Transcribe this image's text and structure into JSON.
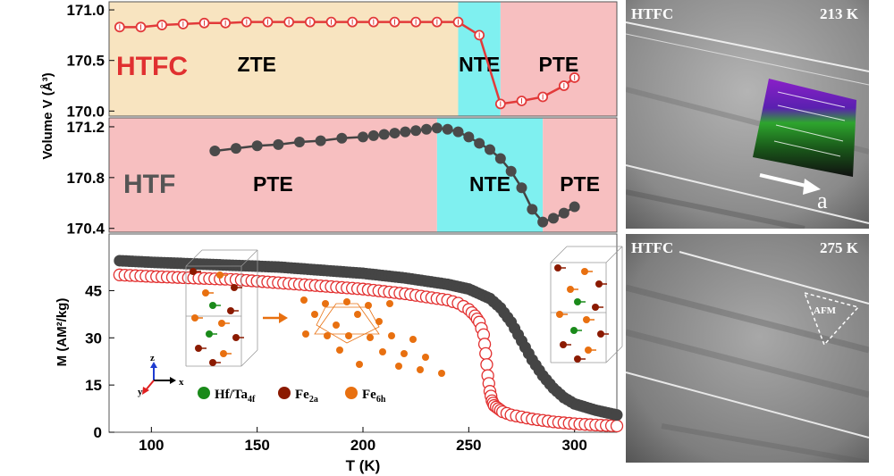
{
  "chart_data": [
    {
      "type": "line",
      "panel": "volume-HTFC",
      "ylabel": "Volume V (Å³)",
      "xlim": [
        80,
        320
      ],
      "ylim": [
        169.95,
        171.08
      ],
      "yticks": [
        "171.0",
        "170.5",
        "170.0"
      ],
      "sample_label": "HTFC",
      "regions": [
        {
          "label": "ZTE",
          "x0": 80,
          "x1": 245,
          "color": "#f8e4c0"
        },
        {
          "label": "NTE",
          "x0": 245,
          "x1": 265,
          "color": "#7ff0f0"
        },
        {
          "label": "PTE",
          "x0": 265,
          "x1": 320,
          "color": "#f7bfc0"
        }
      ],
      "series": [
        {
          "x": [
            85,
            95,
            105,
            115,
            125,
            135,
            145,
            155,
            165,
            175,
            185,
            195,
            205,
            215,
            225,
            235,
            245,
            255,
            265,
            275,
            285,
            295,
            300
          ],
          "y": [
            170.83,
            170.83,
            170.85,
            170.86,
            170.87,
            170.87,
            170.88,
            170.88,
            170.88,
            170.88,
            170.88,
            170.88,
            170.88,
            170.88,
            170.88,
            170.88,
            170.88,
            170.75,
            170.07,
            170.1,
            170.14,
            170.25,
            170.33
          ]
        }
      ]
    },
    {
      "type": "line",
      "panel": "volume-HTF",
      "xlim": [
        80,
        320
      ],
      "ylim": [
        170.37,
        171.27
      ],
      "yticks": [
        "171.2",
        "170.8",
        "170.4"
      ],
      "sample_label": "HTF",
      "regions": [
        {
          "label": "PTE",
          "x0": 80,
          "x1": 235,
          "color": "#f7bfc0"
        },
        {
          "label": "NTE",
          "x0": 235,
          "x1": 285,
          "color": "#7ff0f0"
        },
        {
          "label": "PTE",
          "x0": 285,
          "x1": 320,
          "color": "#f7bfc0"
        }
      ],
      "series": [
        {
          "x": [
            130,
            140,
            150,
            160,
            170,
            180,
            190,
            200,
            205,
            210,
            215,
            220,
            225,
            230,
            235,
            240,
            245,
            250,
            255,
            260,
            265,
            270,
            275,
            280,
            285,
            290,
            295,
            300
          ],
          "y": [
            171.01,
            171.03,
            171.05,
            171.06,
            171.08,
            171.09,
            171.11,
            171.12,
            171.13,
            171.14,
            171.15,
            171.16,
            171.17,
            171.18,
            171.19,
            171.18,
            171.16,
            171.12,
            171.07,
            171.02,
            170.95,
            170.85,
            170.72,
            170.55,
            170.45,
            170.48,
            170.52,
            170.57
          ]
        }
      ]
    },
    {
      "type": "scatter",
      "panel": "magnetization",
      "xlabel": "T (K)",
      "ylabel": "M (AM²/kg)",
      "xlim": [
        80,
        320
      ],
      "ylim": [
        0,
        63
      ],
      "xticks": [
        "100",
        "150",
        "200",
        "250",
        "300"
      ],
      "yticks": [
        "0",
        "15",
        "30",
        "45"
      ],
      "legend": [
        "Hf/Ta4f",
        "Fe2a",
        "Fe6h"
      ],
      "series": [
        {
          "color": "#444444",
          "x": [
            85,
            100,
            120,
            140,
            160,
            180,
            200,
            220,
            240,
            250,
            260,
            265,
            270,
            275,
            280,
            285,
            290,
            295,
            300,
            310,
            320
          ],
          "y": [
            54.5,
            54,
            53.5,
            53,
            52.5,
            51.5,
            50.5,
            49,
            47,
            45.5,
            42.5,
            39.5,
            35,
            29,
            23,
            18,
            14,
            11,
            9,
            7,
            5.5
          ]
        },
        {
          "color": "#e02020",
          "x": [
            85,
            100,
            120,
            140,
            160,
            180,
            200,
            220,
            240,
            245,
            250,
            253,
            255,
            257,
            258,
            259,
            260,
            261,
            262,
            264,
            266,
            270,
            280,
            290,
            300,
            310,
            320
          ],
          "y": [
            50,
            49.5,
            49,
            48.5,
            47.5,
            46.5,
            45.5,
            44,
            42,
            41,
            39,
            37,
            35,
            31,
            25,
            18,
            13,
            10,
            8.5,
            7.5,
            6.5,
            5.5,
            4.2,
            3.3,
            2.7,
            2.3,
            2
          ]
        }
      ]
    }
  ],
  "legend_labels": {
    "hf": "Hf/Ta",
    "hf_sub": "4f",
    "fe2a": "Fe",
    "fe2a_sub": "2a",
    "fe6h": "Fe",
    "fe6h_sub": "6h"
  },
  "axes_labels": {
    "x": "x",
    "y": "y",
    "z": "z"
  },
  "images": [
    {
      "label": "HTFC",
      "temperature": "213 K",
      "arrow_label": "a"
    },
    {
      "label": "HTFC",
      "temperature": "275 K",
      "region_label": "AFM"
    }
  ]
}
